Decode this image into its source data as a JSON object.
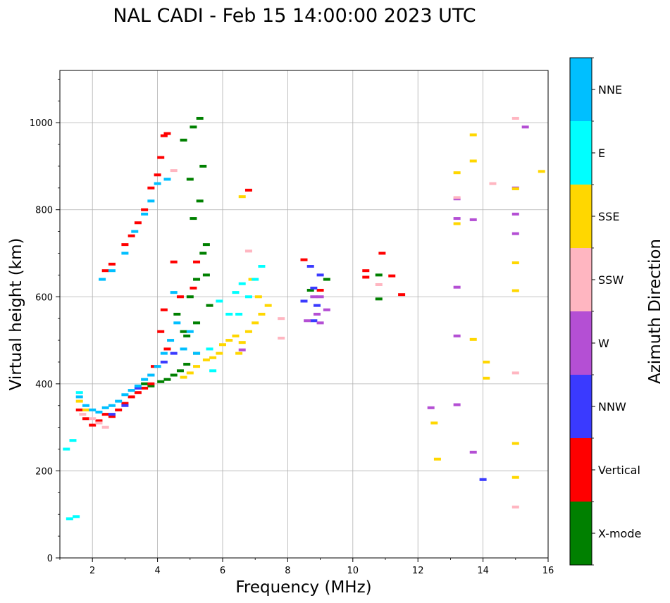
{
  "chart_data": {
    "type": "scatter",
    "title": "NAL CADI - Feb 15 14:00:00 2023 UTC",
    "xlabel": "Frequency (MHz)",
    "ylabel": "Virtual height (km)",
    "xlim": [
      1,
      16
    ],
    "ylim": [
      0,
      1120
    ],
    "xticks": [
      2,
      4,
      6,
      8,
      10,
      12,
      14,
      16
    ],
    "yticks": [
      0,
      200,
      400,
      600,
      800,
      1000
    ],
    "grid": true,
    "colorbar": {
      "label": "Azimuth Direction",
      "categories": [
        {
          "name": "X-mode",
          "color": "#008000"
        },
        {
          "name": "Vertical",
          "color": "#ff0000"
        },
        {
          "name": "NNW",
          "color": "#3a3aff"
        },
        {
          "name": "W",
          "color": "#b44fd4"
        },
        {
          "name": "SSW",
          "color": "#ffb6c1"
        },
        {
          "name": "SSE",
          "color": "#ffd700"
        },
        {
          "name": "E",
          "color": "#00ffff"
        },
        {
          "name": "NNE",
          "color": "#00bfff"
        }
      ]
    },
    "series": [
      {
        "name": "X-mode",
        "points": [
          [
            3.6,
            400
          ],
          [
            3.8,
            395
          ],
          [
            4.1,
            405
          ],
          [
            4.3,
            410
          ],
          [
            4.5,
            420
          ],
          [
            4.7,
            430
          ],
          [
            4.9,
            445
          ],
          [
            5.2,
            470
          ],
          [
            4.6,
            560
          ],
          [
            4.8,
            520
          ],
          [
            5.0,
            600
          ],
          [
            5.2,
            640
          ],
          [
            5.4,
            700
          ],
          [
            5.5,
            720
          ],
          [
            5.1,
            780
          ],
          [
            5.3,
            820
          ],
          [
            5.0,
            870
          ],
          [
            5.4,
            900
          ],
          [
            4.8,
            960
          ],
          [
            5.1,
            990
          ],
          [
            5.3,
            1010
          ],
          [
            5.5,
            650
          ],
          [
            5.6,
            580
          ],
          [
            5.2,
            540
          ],
          [
            4.9,
            510
          ],
          [
            10.8,
            650
          ],
          [
            10.8,
            595
          ],
          [
            8.7,
            615
          ],
          [
            9.2,
            640
          ]
        ]
      },
      {
        "name": "Vertical",
        "points": [
          [
            1.6,
            340
          ],
          [
            1.8,
            320
          ],
          [
            2.0,
            305
          ],
          [
            2.2,
            315
          ],
          [
            2.4,
            330
          ],
          [
            2.6,
            325
          ],
          [
            2.8,
            340
          ],
          [
            3.0,
            355
          ],
          [
            3.2,
            370
          ],
          [
            3.4,
            380
          ],
          [
            3.6,
            390
          ],
          [
            3.8,
            400
          ],
          [
            2.4,
            660
          ],
          [
            2.6,
            675
          ],
          [
            3.0,
            720
          ],
          [
            3.2,
            740
          ],
          [
            3.4,
            770
          ],
          [
            3.6,
            800
          ],
          [
            3.8,
            850
          ],
          [
            4.0,
            880
          ],
          [
            4.1,
            920
          ],
          [
            4.3,
            975
          ],
          [
            4.2,
            970
          ],
          [
            4.2,
            570
          ],
          [
            4.1,
            520
          ],
          [
            4.3,
            480
          ],
          [
            4.7,
            600
          ],
          [
            5.1,
            620
          ],
          [
            4.5,
            680
          ],
          [
            5.2,
            680
          ],
          [
            6.8,
            845
          ],
          [
            8.5,
            685
          ],
          [
            9.0,
            615
          ],
          [
            10.4,
            660
          ],
          [
            10.4,
            645
          ],
          [
            10.9,
            700
          ],
          [
            11.2,
            648
          ],
          [
            11.5,
            605
          ],
          [
            3.9,
            440
          ]
        ]
      },
      {
        "name": "NNW",
        "points": [
          [
            2.6,
            330
          ],
          [
            3.0,
            350
          ],
          [
            3.4,
            390
          ],
          [
            3.8,
            420
          ],
          [
            4.2,
            450
          ],
          [
            4.5,
            470
          ],
          [
            8.5,
            590
          ],
          [
            8.7,
            670
          ],
          [
            8.8,
            620
          ],
          [
            8.9,
            580
          ],
          [
            9.0,
            650
          ],
          [
            8.8,
            545
          ],
          [
            14.0,
            180
          ]
        ]
      },
      {
        "name": "W",
        "points": [
          [
            8.6,
            545
          ],
          [
            8.8,
            600
          ],
          [
            8.9,
            560
          ],
          [
            9.0,
            540
          ],
          [
            9.2,
            570
          ],
          [
            9.0,
            600
          ],
          [
            12.4,
            345
          ],
          [
            13.2,
            825
          ],
          [
            13.2,
            780
          ],
          [
            13.2,
            622
          ],
          [
            13.2,
            510
          ],
          [
            13.2,
            352
          ],
          [
            13.7,
            777
          ],
          [
            13.7,
            243
          ],
          [
            15.0,
            850
          ],
          [
            15.0,
            790
          ],
          [
            15.0,
            745
          ],
          [
            15.3,
            990
          ],
          [
            6.6,
            478
          ]
        ]
      },
      {
        "name": "SSW",
        "points": [
          [
            1.7,
            330
          ],
          [
            2.0,
            320
          ],
          [
            2.2,
            310
          ],
          [
            2.4,
            300
          ],
          [
            4.5,
            890
          ],
          [
            6.8,
            705
          ],
          [
            10.8,
            628
          ],
          [
            13.2,
            828
          ],
          [
            14.3,
            860
          ],
          [
            15.0,
            425
          ],
          [
            15.0,
            117
          ],
          [
            15.0,
            1010
          ],
          [
            7.8,
            505
          ],
          [
            7.8,
            550
          ]
        ]
      },
      {
        "name": "SSE",
        "points": [
          [
            1.6,
            360
          ],
          [
            1.8,
            340
          ],
          [
            4.8,
            415
          ],
          [
            5.0,
            425
          ],
          [
            5.2,
            440
          ],
          [
            5.5,
            455
          ],
          [
            5.7,
            460
          ],
          [
            5.9,
            470
          ],
          [
            6.0,
            490
          ],
          [
            6.2,
            500
          ],
          [
            6.4,
            510
          ],
          [
            6.6,
            495
          ],
          [
            6.8,
            520
          ],
          [
            7.0,
            540
          ],
          [
            7.2,
            560
          ],
          [
            7.4,
            580
          ],
          [
            6.9,
            640
          ],
          [
            7.1,
            600
          ],
          [
            6.5,
            470
          ],
          [
            6.6,
            830
          ],
          [
            12.5,
            310
          ],
          [
            12.6,
            227
          ],
          [
            13.2,
            885
          ],
          [
            13.2,
            768
          ],
          [
            13.7,
            972
          ],
          [
            13.7,
            912
          ],
          [
            13.7,
            502
          ],
          [
            14.1,
            450
          ],
          [
            14.1,
            413
          ],
          [
            15.0,
            678
          ],
          [
            15.0,
            614
          ],
          [
            15.0,
            263
          ],
          [
            15.0,
            185
          ],
          [
            15.0,
            848
          ],
          [
            15.8,
            888
          ]
        ]
      },
      {
        "name": "E",
        "points": [
          [
            1.2,
            250
          ],
          [
            1.4,
            270
          ],
          [
            1.6,
            380
          ],
          [
            1.3,
            90
          ],
          [
            1.5,
            95
          ],
          [
            5.9,
            590
          ],
          [
            6.2,
            560
          ],
          [
            6.4,
            610
          ],
          [
            6.6,
            630
          ],
          [
            6.8,
            600
          ],
          [
            7.0,
            640
          ],
          [
            7.2,
            670
          ],
          [
            6.5,
            560
          ],
          [
            5.7,
            430
          ],
          [
            5.6,
            480
          ]
        ]
      },
      {
        "name": "NNE",
        "points": [
          [
            1.6,
            370
          ],
          [
            1.8,
            350
          ],
          [
            2.0,
            340
          ],
          [
            2.2,
            335
          ],
          [
            2.4,
            345
          ],
          [
            2.6,
            350
          ],
          [
            2.8,
            360
          ],
          [
            3.0,
            375
          ],
          [
            3.2,
            385
          ],
          [
            3.4,
            395
          ],
          [
            3.6,
            410
          ],
          [
            3.8,
            420
          ],
          [
            4.0,
            440
          ],
          [
            4.2,
            470
          ],
          [
            4.4,
            500
          ],
          [
            4.6,
            540
          ],
          [
            4.8,
            480
          ],
          [
            2.3,
            640
          ],
          [
            2.6,
            660
          ],
          [
            3.0,
            700
          ],
          [
            3.3,
            750
          ],
          [
            3.6,
            790
          ],
          [
            3.8,
            820
          ],
          [
            4.0,
            860
          ],
          [
            4.3,
            870
          ],
          [
            4.5,
            610
          ],
          [
            5.0,
            520
          ],
          [
            5.2,
            470
          ]
        ]
      }
    ]
  }
}
